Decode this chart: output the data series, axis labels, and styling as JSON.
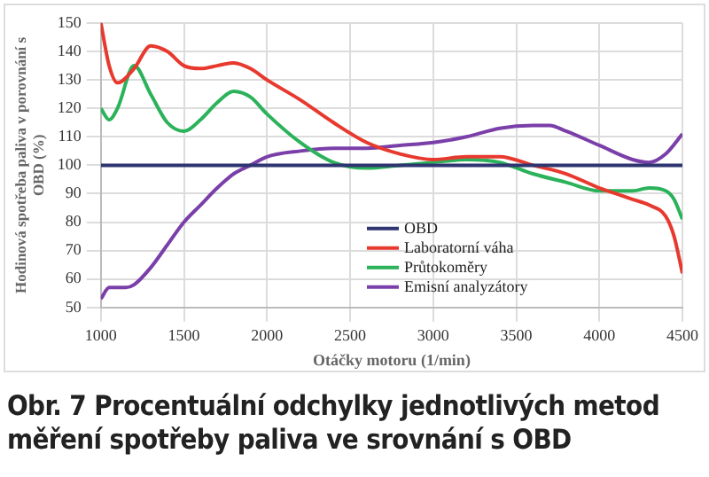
{
  "chart_data": {
    "type": "line",
    "title": "Obr. 7 Procentuální odchylky jednotlivých metod měření spotřeby paliva ve srovnání s OBD",
    "xlabel": "Otáčky motoru (1/min)",
    "ylabel": "Hodinová spotřeba paliva v porovnání s OBD (%)",
    "xlim": [
      1000,
      4500
    ],
    "xticks": [
      1000,
      1500,
      2000,
      2500,
      3000,
      3500,
      4000,
      4500
    ],
    "ylim": [
      50,
      150
    ],
    "yticks": [
      50,
      60,
      70,
      80,
      90,
      100,
      110,
      120,
      130,
      140,
      150
    ],
    "grid": true,
    "legend": "bottom right",
    "marker": "none",
    "line_style": "solid",
    "series": [
      {
        "name": "OBD",
        "color": "#2e3570",
        "x": [
          1000,
          4500
        ],
        "values": [
          100,
          100
        ]
      },
      {
        "name": "Laboratorní váha",
        "color": "#e8392f",
        "x": [
          1000,
          1050,
          1100,
          1200,
          1300,
          1400,
          1500,
          1600,
          1700,
          1800,
          1900,
          2000,
          2200,
          2400,
          2600,
          2800,
          3000,
          3200,
          3400,
          3600,
          3800,
          4000,
          4100,
          4200,
          4300,
          4400,
          4450,
          4500
        ],
        "values": [
          150,
          135,
          129,
          134,
          142,
          140,
          135,
          134,
          135,
          136,
          134,
          130,
          123,
          115,
          108,
          104,
          102,
          103,
          103,
          100,
          97,
          92,
          90,
          88,
          86,
          82,
          75,
          62
        ]
      },
      {
        "name": "Průtokoměry",
        "color": "#2bb25a",
        "x": [
          1000,
          1050,
          1100,
          1200,
          1300,
          1400,
          1500,
          1600,
          1700,
          1800,
          1900,
          2000,
          2200,
          2400,
          2600,
          2800,
          3000,
          3200,
          3400,
          3600,
          3800,
          4000,
          4200,
          4300,
          4400,
          4450,
          4500
        ],
        "values": [
          120,
          116,
          120,
          135,
          125,
          115,
          112,
          116,
          122,
          126,
          124,
          118,
          108,
          101,
          99,
          100,
          101,
          102,
          101,
          97,
          94,
          91,
          91,
          92,
          91,
          88,
          81
        ]
      },
      {
        "name": "Emisní analyzátory",
        "color": "#7a3fa8",
        "x": [
          1000,
          1050,
          1150,
          1200,
          1300,
          1400,
          1500,
          1600,
          1700,
          1800,
          1900,
          2000,
          2200,
          2400,
          2600,
          2800,
          3000,
          3200,
          3400,
          3600,
          3700,
          3800,
          4000,
          4200,
          4300,
          4400,
          4500
        ],
        "values": [
          53,
          57,
          57,
          58,
          64,
          72,
          80,
          86,
          92,
          97,
          100,
          103,
          105,
          106,
          106,
          107,
          108,
          110,
          113,
          114,
          114,
          112,
          107,
          102,
          101,
          104,
          111
        ]
      }
    ]
  }
}
